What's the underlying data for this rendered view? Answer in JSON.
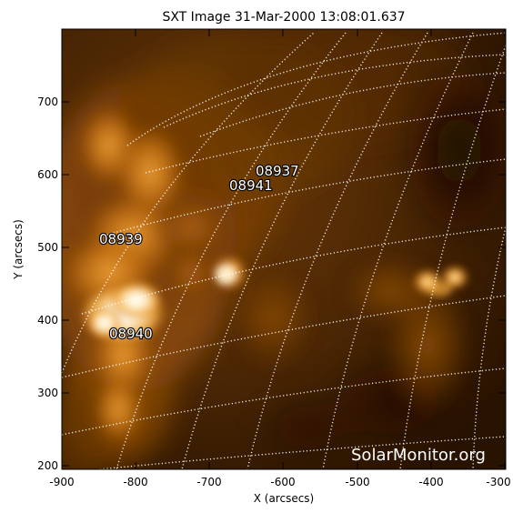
{
  "title": "SXT Image 31-Mar-2000 13:08:01.637",
  "x_axis_label": "X (arcsecs)",
  "y_axis_label": "Y (arcsecs)",
  "x_ticks": [
    "-900",
    "-800",
    "-700",
    "-600",
    "-500",
    "-400",
    "-300"
  ],
  "y_ticks": [
    "200",
    "300",
    "400",
    "500",
    "600",
    "700"
  ],
  "active_regions": [
    "08937",
    "08941",
    "08939",
    "08940"
  ],
  "watermark": "SolarMonitor.org",
  "colors": {
    "background_dark": "#2a1400",
    "mid_orange": "#8a4a08",
    "bright_orange": "#e89a2e",
    "saturated": "#fff4d8"
  }
}
